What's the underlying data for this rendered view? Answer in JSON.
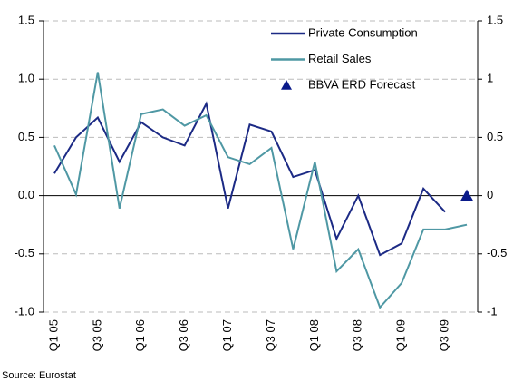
{
  "chart_data": {
    "type": "line",
    "categories": [
      "Q1 05",
      null,
      "Q3 05",
      null,
      "Q1 06",
      null,
      "Q3 06",
      null,
      "Q1 07",
      null,
      "Q3 07",
      null,
      "Q1 08",
      null,
      "Q3 08",
      null,
      "Q1 09",
      null,
      "Q3 09",
      null
    ],
    "series": [
      {
        "name": "Private Consumption",
        "color": "#1c2a85",
        "values": [
          0.19,
          0.5,
          0.67,
          0.29,
          0.63,
          0.5,
          0.43,
          0.79,
          -0.11,
          0.61,
          0.55,
          0.16,
          0.22,
          -0.37,
          0.0,
          -0.51,
          -0.41,
          0.06,
          -0.14,
          null
        ]
      },
      {
        "name": "Retail Sales",
        "color": "#4f98a4",
        "values": [
          0.43,
          0.01,
          1.06,
          -0.11,
          0.7,
          0.74,
          0.6,
          0.69,
          0.33,
          0.27,
          0.41,
          -0.46,
          0.29,
          -0.65,
          -0.46,
          -0.96,
          -0.75,
          -0.29,
          -0.29,
          -0.25
        ]
      },
      {
        "name": "BBVA ERD Forecast",
        "color": "#0a1a8a",
        "marker": "triangle",
        "values": [
          null,
          null,
          null,
          null,
          null,
          null,
          null,
          null,
          null,
          null,
          null,
          null,
          null,
          null,
          null,
          null,
          null,
          null,
          null,
          0.0
        ]
      }
    ],
    "ylim": [
      -1.0,
      1.5
    ],
    "yticks": [
      {
        "value": -1.0,
        "label": "-1.0"
      },
      -0.5,
      {
        "value": 0.0,
        "label": "0.0"
      },
      0.5,
      {
        "value": 1.0,
        "label": "1.0"
      },
      1.5
    ],
    "y2lim": [
      -1,
      1.5
    ],
    "y2ticks": [
      -1,
      -0.5,
      0,
      0.5,
      1,
      1.5
    ],
    "grid": true,
    "legend": "top-right",
    "source": "Source: Eurostat"
  }
}
